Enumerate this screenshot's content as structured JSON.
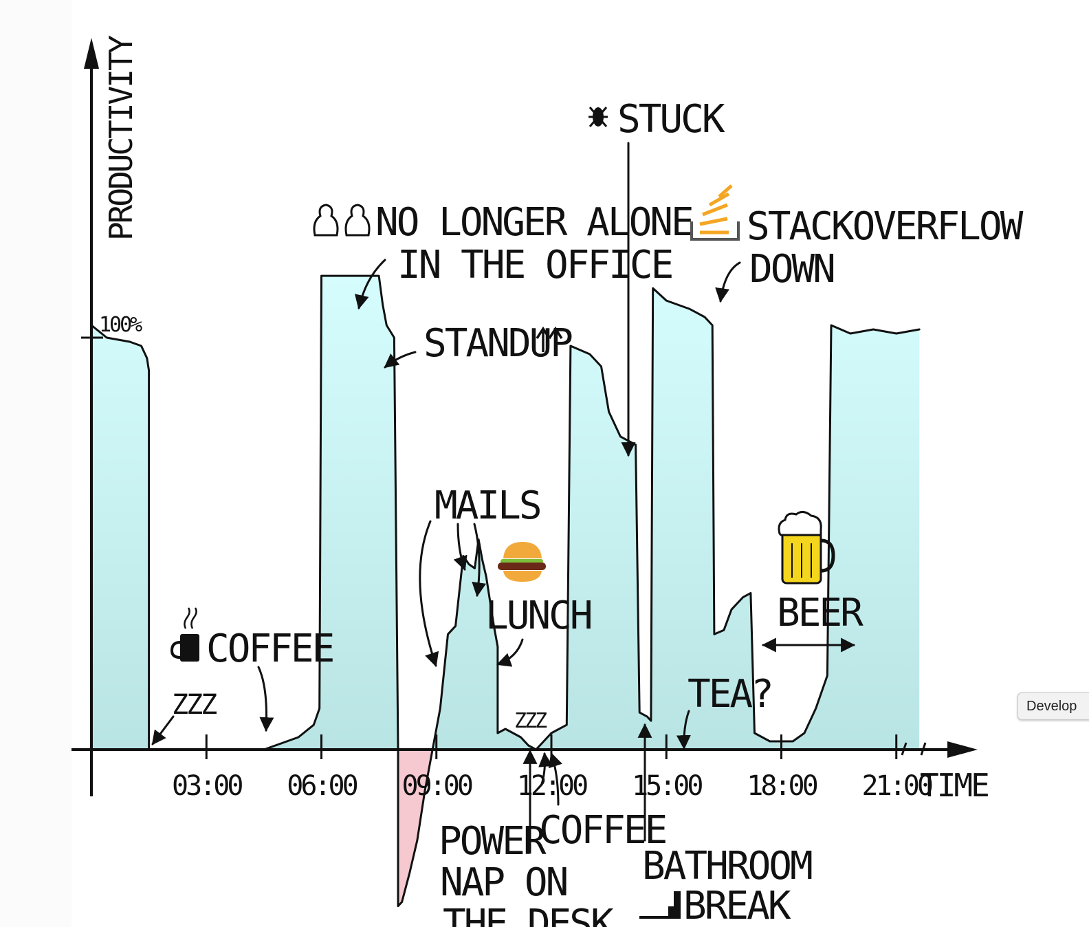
{
  "chart_data": {
    "type": "area",
    "title": "",
    "xlabel": "TIME",
    "ylabel": "PRODUCTIVITY",
    "y_ref_label": "100%",
    "x_ticks": [
      "03:00",
      "06:00",
      "09:00",
      "12:00",
      "15:00",
      "18:00",
      "21:00"
    ],
    "x_range_hours": [
      0,
      24
    ],
    "y_range_percent": [
      -40,
      110
    ],
    "colors": {
      "positive": "#d2fbfb",
      "positive_bottom": "#b3dede",
      "negative": "#f6c8d0",
      "ink": "#111111",
      "beer": "#f5d61e",
      "bun": "#f2a93b",
      "patty": "#6b2a18",
      "lettuce": "#7bbf3a",
      "stack": "#f4a623"
    },
    "series": [
      {
        "points": [
          [
            0.0,
            103
          ],
          [
            0.4,
            100
          ],
          [
            1.0,
            99
          ],
          [
            1.3,
            98
          ],
          [
            1.45,
            95
          ],
          [
            1.5,
            92
          ],
          [
            1.5,
            0
          ],
          [
            4.5,
            0
          ],
          [
            5.4,
            3
          ],
          [
            5.8,
            6
          ],
          [
            5.95,
            10
          ],
          [
            6.0,
            115
          ],
          [
            7.5,
            115
          ],
          [
            7.6,
            108
          ],
          [
            7.7,
            103
          ],
          [
            7.9,
            100
          ],
          [
            8.0,
            0
          ],
          [
            8.0,
            -38
          ],
          [
            8.1,
            -37
          ],
          [
            8.3,
            -30
          ],
          [
            8.5,
            -22
          ],
          [
            8.7,
            -10
          ],
          [
            9.1,
            10
          ],
          [
            9.3,
            28
          ],
          [
            9.5,
            30
          ],
          [
            9.7,
            47
          ],
          [
            9.85,
            45
          ],
          [
            10.0,
            44
          ],
          [
            10.1,
            51
          ],
          [
            10.2,
            46
          ],
          [
            10.3,
            42
          ],
          [
            10.5,
            30
          ],
          [
            10.6,
            25
          ],
          [
            10.6,
            4
          ],
          [
            10.8,
            5
          ],
          [
            11.0,
            4
          ],
          [
            11.2,
            3
          ],
          [
            11.4,
            1
          ],
          [
            11.6,
            0
          ],
          [
            12.0,
            4
          ],
          [
            12.4,
            6
          ],
          [
            12.5,
            98
          ],
          [
            13.0,
            96
          ],
          [
            13.3,
            93
          ],
          [
            13.5,
            82
          ],
          [
            13.8,
            76
          ],
          [
            14.2,
            74
          ],
          [
            14.3,
            9
          ],
          [
            14.5,
            8
          ],
          [
            14.6,
            7
          ],
          [
            14.65,
            112
          ],
          [
            15.0,
            109
          ],
          [
            15.6,
            107
          ],
          [
            16.0,
            105
          ],
          [
            16.2,
            103
          ],
          [
            16.25,
            28
          ],
          [
            16.5,
            29
          ],
          [
            16.7,
            34
          ],
          [
            17.0,
            37
          ],
          [
            17.2,
            38
          ],
          [
            17.3,
            4
          ],
          [
            17.7,
            2
          ],
          [
            18.3,
            2
          ],
          [
            18.6,
            4
          ],
          [
            18.9,
            10
          ],
          [
            19.2,
            18
          ],
          [
            19.3,
            103
          ],
          [
            19.8,
            101
          ],
          [
            20.4,
            102
          ],
          [
            21.0,
            101
          ],
          [
            21.6,
            102
          ]
        ]
      }
    ],
    "annotations": [
      {
        "text": "ZZZ",
        "x": 1.5,
        "y": 0
      },
      {
        "text": "COFFEE",
        "x": 4.5,
        "y": 0
      },
      {
        "text": "NO LONGER ALONE IN THE OFFICE",
        "x": 7.0,
        "y": 115
      },
      {
        "text": "STANDUP",
        "x": 8.0,
        "y": 100
      },
      {
        "text": "MAILS",
        "x": 9.6,
        "y": 47
      },
      {
        "text": "LUNCH",
        "x": 10.6,
        "y": 22
      },
      {
        "text": "POWER NAP ON THE DESK",
        "x": 11.5,
        "y": 0
      },
      {
        "text": "COFFEE",
        "x": 12.0,
        "y": 0
      },
      {
        "text": "STUCK",
        "x": 14.3,
        "y": 76
      },
      {
        "text": "BATHROOM BREAK",
        "x": 14.6,
        "y": 7
      },
      {
        "text": "STACKOVERFLOW DOWN",
        "x": 16.2,
        "y": 103
      },
      {
        "text": "TEA?",
        "x": 15.9,
        "y": 0
      },
      {
        "text": "BEER",
        "x": 17.3,
        "y": 28
      }
    ],
    "grid": false,
    "legend": "none"
  },
  "labels": {
    "ylabel": "PRODUCTIVITY",
    "xlabel": "TIME",
    "y_ref": "100%",
    "zzz1": "ZZZ",
    "coffee1": "COFFEE",
    "alone_1": "NO LONGER ALONE",
    "alone_2": "IN THE OFFICE",
    "standup": "STANDUP",
    "mails": "MAILS",
    "lunch": "LUNCH",
    "nap_1": "POWER",
    "nap_2": "NAP ON",
    "nap_3": "THE DESK",
    "zzz2": "ZZZ",
    "coffee2": "COFFEE",
    "stuck": "STUCK",
    "bath_1": "BATHROOM",
    "bath_2": "BREAK",
    "so_1": "STACKOVERFLOW",
    "so_2": "DOWN",
    "tea": "TEA?",
    "beer": "BEER"
  },
  "tooltip": {
    "text": "Develop"
  }
}
